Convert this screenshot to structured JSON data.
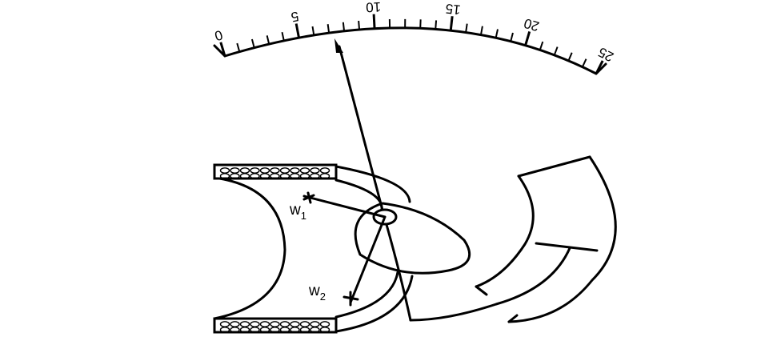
{
  "scale": {
    "min": 0,
    "max": 25,
    "labels": [
      "0",
      "5",
      "10",
      "15",
      "20",
      "25"
    ],
    "pointer_value": 10.6
  },
  "weights": {
    "w1": {
      "letter": "w",
      "sub": "1"
    },
    "w2": {
      "letter": "w",
      "sub": "2"
    }
  }
}
